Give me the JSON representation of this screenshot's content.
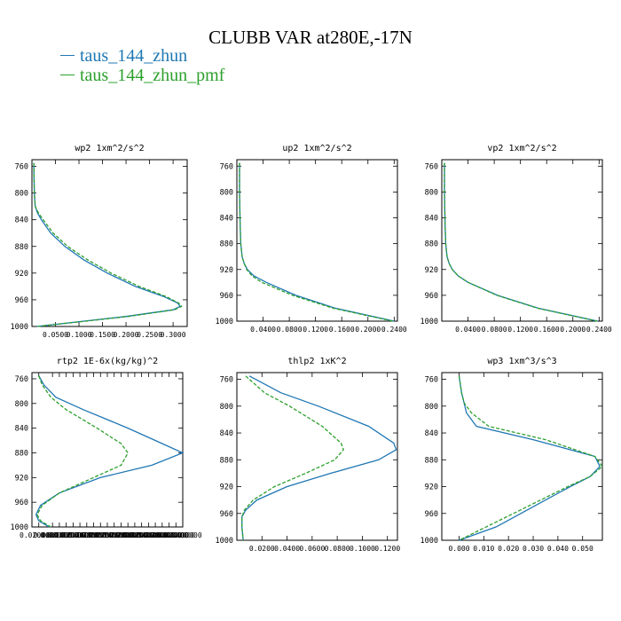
{
  "title": "CLUBB VAR at280E,-17N",
  "legend": [
    {
      "label": "taus_144_zhun",
      "color": "#1f77b4"
    },
    {
      "label": "taus_144_zhun_pmf",
      "color": "#2ca02c"
    }
  ],
  "chart_data": [
    {
      "type": "line",
      "title": "wp2  1xm^2/s^2",
      "ylim": [
        1000,
        750
      ],
      "yticks": [
        760,
        800,
        840,
        880,
        920,
        960,
        1000
      ],
      "xlim": [
        0,
        0.33
      ],
      "xticks": [
        0.05,
        0.1,
        0.15,
        0.2,
        0.25,
        0.3
      ],
      "xtick_labels": [
        "0.0500",
        "0.1000",
        "0.1500",
        "0.2000",
        "0.2500",
        "0.3000"
      ],
      "series": [
        {
          "name": "taus_144_zhun",
          "y": [
            755,
            800,
            820,
            830,
            840,
            860,
            880,
            900,
            920,
            940,
            955,
            965,
            970,
            975,
            985,
            1000
          ],
          "x": [
            0.004,
            0.005,
            0.007,
            0.012,
            0.02,
            0.04,
            0.07,
            0.11,
            0.16,
            0.22,
            0.28,
            0.31,
            0.315,
            0.3,
            0.2,
            0.01
          ]
        },
        {
          "name": "taus_144_zhun_pmf",
          "y": [
            755,
            800,
            820,
            830,
            840,
            860,
            880,
            900,
            920,
            940,
            955,
            965,
            970,
            975,
            985,
            1000
          ],
          "x": [
            0.004,
            0.005,
            0.007,
            0.014,
            0.024,
            0.045,
            0.076,
            0.118,
            0.168,
            0.228,
            0.285,
            0.312,
            0.318,
            0.303,
            0.205,
            0.012
          ]
        }
      ]
    },
    {
      "type": "line",
      "title": "up2  1xm^2/s^2",
      "ylim": [
        1000,
        750
      ],
      "yticks": [
        760,
        800,
        840,
        880,
        920,
        960,
        1000
      ],
      "xlim": [
        0,
        0.245
      ],
      "xticks": [
        0.04,
        0.08,
        0.12,
        0.16,
        0.2,
        0.24
      ],
      "xtick_labels": [
        "0.0400",
        "0.0800",
        "0.1200",
        "0.1600",
        "0.2000",
        "0.2400"
      ],
      "series": [
        {
          "name": "taus_144_zhun",
          "y": [
            755,
            800,
            850,
            880,
            900,
            910,
            920,
            930,
            940,
            960,
            980,
            1000
          ],
          "x": [
            0.004,
            0.004,
            0.005,
            0.006,
            0.008,
            0.011,
            0.016,
            0.026,
            0.045,
            0.09,
            0.15,
            0.24
          ]
        },
        {
          "name": "taus_144_zhun_pmf",
          "y": [
            755,
            800,
            850,
            880,
            900,
            910,
            920,
            930,
            940,
            960,
            980,
            1000
          ],
          "x": [
            0.004,
            0.004,
            0.005,
            0.006,
            0.008,
            0.011,
            0.015,
            0.023,
            0.038,
            0.085,
            0.147,
            0.238
          ]
        }
      ]
    },
    {
      "type": "line",
      "title": "vp2  1xm^2/s^2",
      "ylim": [
        1000,
        750
      ],
      "yticks": [
        760,
        800,
        840,
        880,
        920,
        960,
        1000
      ],
      "xlim": [
        0,
        0.245
      ],
      "xticks": [
        0.04,
        0.08,
        0.12,
        0.16,
        0.2,
        0.24
      ],
      "xtick_labels": [
        "0.0400",
        "0.0800",
        "0.1200",
        "0.1600",
        "0.2000",
        "0.2400"
      ],
      "series": [
        {
          "name": "taus_144_zhun",
          "y": [
            755,
            800,
            850,
            880,
            900,
            910,
            920,
            930,
            940,
            960,
            980,
            1000
          ],
          "x": [
            0.004,
            0.004,
            0.005,
            0.006,
            0.008,
            0.011,
            0.016,
            0.025,
            0.04,
            0.085,
            0.147,
            0.238
          ]
        },
        {
          "name": "taus_144_zhun_pmf",
          "y": [
            755,
            800,
            850,
            880,
            900,
            910,
            920,
            930,
            940,
            960,
            980,
            1000
          ],
          "x": [
            0.004,
            0.004,
            0.005,
            0.006,
            0.008,
            0.011,
            0.016,
            0.025,
            0.04,
            0.084,
            0.146,
            0.237
          ]
        }
      ]
    },
    {
      "type": "line",
      "title": "rtp2  1E-6x(kg/kg)^2",
      "ylim": [
        1000,
        750
      ],
      "yticks": [
        760,
        800,
        840,
        880,
        920,
        960,
        1000
      ],
      "xlim": [
        0,
        0.44
      ],
      "xticks": [
        0.02,
        0.06,
        0.08,
        0.1,
        0.12,
        0.14,
        0.16,
        0.18,
        0.2,
        0.22,
        0.24,
        0.26,
        0.28,
        0.3,
        0.32,
        0.34,
        0.36,
        0.38,
        0.4,
        0.42,
        0.44
      ],
      "xtick_labels": [
        "0.0200000",
        "0.0600000",
        "0.0800000",
        "0.1000000",
        "0.1200000",
        "0.1400000",
        "0.1600000",
        "0.1800000",
        "0.2000000",
        "0.2200000",
        "0.2400000",
        "0.2600000",
        "0.2800000",
        "0.3000000",
        "0.3200000",
        "0.3400000",
        "0.3600000",
        "0.3800000",
        "0.4000000",
        "0.4200000",
        "0.4400000"
      ],
      "series": [
        {
          "name": "taus_144_zhun",
          "y": [
            755,
            770,
            790,
            810,
            840,
            865,
            880,
            900,
            920,
            945,
            965,
            980,
            990,
            1000
          ],
          "x": [
            0.02,
            0.035,
            0.07,
            0.15,
            0.28,
            0.38,
            0.44,
            0.35,
            0.2,
            0.08,
            0.025,
            0.012,
            0.02,
            0.05
          ]
        },
        {
          "name": "taus_144_zhun_pmf",
          "y": [
            755,
            770,
            790,
            810,
            840,
            865,
            880,
            900,
            920,
            945,
            965,
            980,
            990,
            1000
          ],
          "x": [
            0.02,
            0.03,
            0.055,
            0.1,
            0.19,
            0.26,
            0.28,
            0.26,
            0.18,
            0.08,
            0.03,
            0.015,
            0.025,
            0.055
          ]
        }
      ]
    },
    {
      "type": "line",
      "title": "thlp2  1xK^2",
      "ylim": [
        1000,
        750
      ],
      "yticks": [
        760,
        800,
        840,
        880,
        920,
        960,
        1000
      ],
      "xlim": [
        0,
        0.128
      ],
      "xticks": [
        0.02,
        0.04,
        0.06,
        0.08,
        0.1,
        0.12
      ],
      "xtick_labels": [
        "0.0200",
        "0.0400",
        "0.0600",
        "0.0800",
        "0.1000",
        "0.1200"
      ],
      "series": [
        {
          "name": "taus_144_zhun",
          "y": [
            755,
            780,
            800,
            830,
            855,
            865,
            880,
            900,
            920,
            940,
            955,
            965,
            980,
            1000
          ],
          "x": [
            0.01,
            0.035,
            0.065,
            0.105,
            0.125,
            0.127,
            0.113,
            0.075,
            0.04,
            0.016,
            0.007,
            0.004,
            0.004,
            0.005
          ]
        },
        {
          "name": "taus_144_zhun_pmf",
          "y": [
            755,
            780,
            800,
            830,
            855,
            865,
            880,
            900,
            920,
            940,
            955,
            965,
            980,
            1000
          ],
          "x": [
            0.007,
            0.022,
            0.042,
            0.068,
            0.083,
            0.085,
            0.078,
            0.055,
            0.03,
            0.013,
            0.006,
            0.004,
            0.004,
            0.005
          ]
        }
      ]
    },
    {
      "type": "line",
      "title": "wp3  1xm^3/s^3",
      "ylim": [
        1000,
        750
      ],
      "yticks": [
        760,
        800,
        840,
        880,
        920,
        960,
        1000
      ],
      "xlim": [
        -0.007,
        0.058
      ],
      "xticks": [
        0.0,
        0.01,
        0.02,
        0.03,
        0.04,
        0.05
      ],
      "xtick_labels": [
        "0.000",
        "0.010",
        "0.020",
        "0.030",
        "0.040",
        "0.050"
      ],
      "series": [
        {
          "name": "taus_144_zhun",
          "y": [
            755,
            780,
            795,
            810,
            830,
            850,
            875,
            890,
            905,
            920,
            940,
            960,
            980,
            1000
          ],
          "x": [
            0.0,
            0.001,
            0.002,
            0.003,
            0.007,
            0.03,
            0.055,
            0.057,
            0.053,
            0.045,
            0.035,
            0.025,
            0.015,
            0.0
          ]
        },
        {
          "name": "taus_144_zhun_pmf",
          "y": [
            755,
            780,
            795,
            810,
            830,
            850,
            875,
            890,
            905,
            920,
            940,
            960,
            980,
            1000
          ],
          "x": [
            0.0,
            0.001,
            0.002,
            0.005,
            0.012,
            0.035,
            0.055,
            0.058,
            0.053,
            0.044,
            0.033,
            0.022,
            0.011,
            0.0
          ]
        }
      ]
    }
  ]
}
